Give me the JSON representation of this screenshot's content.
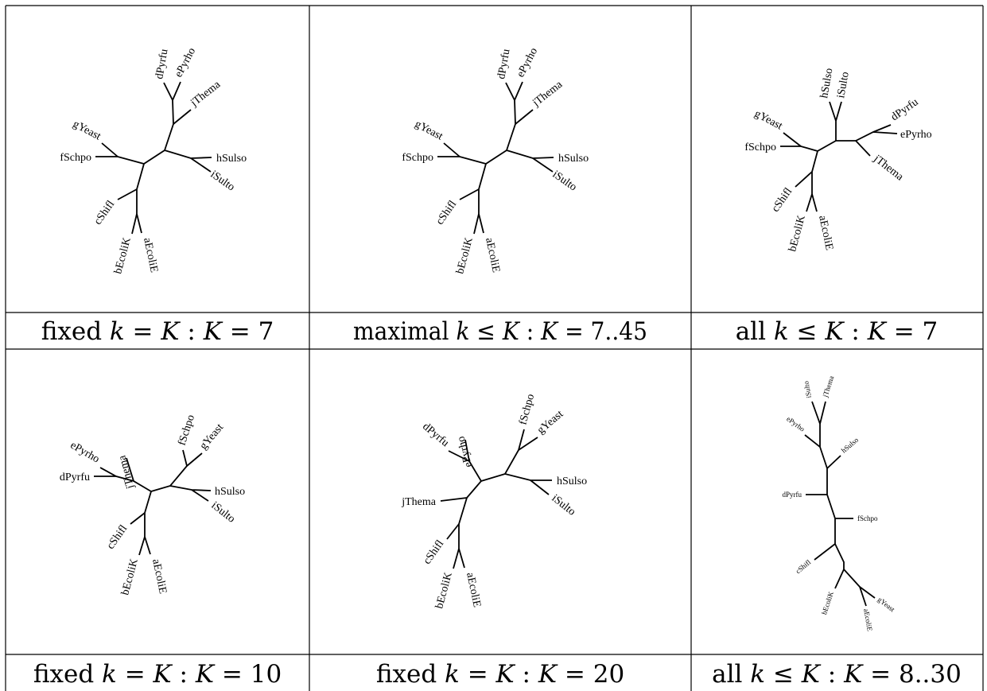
{
  "panels": [
    {
      "id": "p1",
      "caption": {
        "pre": "fixed ",
        "k": "k",
        "rel": " = ",
        "K": "K",
        "mid": " : ",
        "K2": "K",
        "eq": " = ",
        "val": "7"
      },
      "leaves": [
        "dPyrfu",
        "ePyrho",
        "jThema",
        "gYeast",
        "fSchpo",
        "hSulso",
        "iSulto",
        "cShifl",
        "bEcoliK",
        "aEcoliE"
      ]
    },
    {
      "id": "p2",
      "caption": {
        "pre": "maximal ",
        "k": "k",
        "rel": " ≤ ",
        "K": "K",
        "mid": " : ",
        "K2": "K",
        "eq": " = ",
        "val": "7..45"
      },
      "leaves": [
        "dPyrfu",
        "ePyrho",
        "jThema",
        "gYeast",
        "fSchpo",
        "hSulso",
        "iSulto",
        "cShifl",
        "bEcoliK",
        "aEcoliE"
      ]
    },
    {
      "id": "p3",
      "caption": {
        "pre": "all ",
        "k": "k",
        "rel": " ≤ ",
        "K": "K",
        "mid": " : ",
        "K2": "K",
        "eq": " = ",
        "val": "7"
      },
      "leaves": [
        "hSulso",
        "iSulto",
        "dPyrfu",
        "ePyrho",
        "jThema",
        "gYeast",
        "fSchpo",
        "cShifl",
        "bEcoliK",
        "aEcoliE"
      ]
    },
    {
      "id": "p4",
      "caption": {
        "pre": "fixed ",
        "k": "k",
        "rel": " = ",
        "K": "K",
        "mid": " : ",
        "K2": "K",
        "eq": " = ",
        "val": "10"
      },
      "leaves": [
        "ePyrho",
        "jThema",
        "dPyrfu",
        "fSchpo",
        "gYeast",
        "hSulso",
        "iSulto",
        "cShifl",
        "bEcoliK",
        "aEcoliE"
      ]
    },
    {
      "id": "p5",
      "caption": {
        "pre": "fixed ",
        "k": "k",
        "rel": " = ",
        "K": "K",
        "mid": " : ",
        "K2": "K",
        "eq": " = ",
        "val": "20"
      },
      "leaves": [
        "ePyrho",
        "dPyrfu",
        "fSchpo",
        "gYeast",
        "hSulso",
        "iSulto",
        "jThema",
        "cShifl",
        "bEcoliK",
        "aEcoliE"
      ]
    },
    {
      "id": "p6",
      "caption": {
        "pre": "all ",
        "k": "k",
        "rel": " ≤ ",
        "K": "K",
        "mid": " : ",
        "K2": "K",
        "eq": " = ",
        "val": "8..30"
      },
      "leaves": [
        "iSulto",
        "jThema",
        "ePyrho",
        "hSulso",
        "dPyrfu",
        "fSchpo",
        "cShifl",
        "bEcoliK",
        "aEcoliE",
        "gYeast"
      ]
    }
  ]
}
